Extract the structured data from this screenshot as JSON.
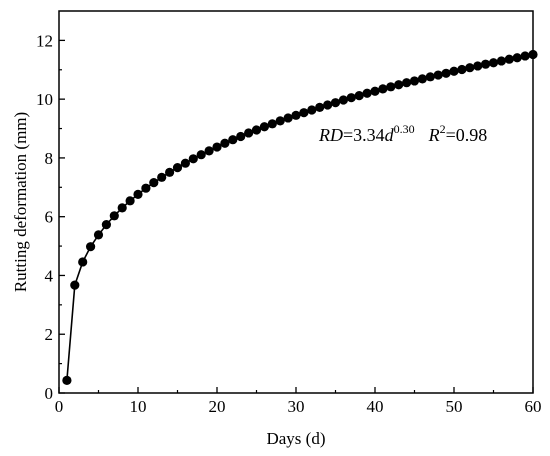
{
  "chart_data": {
    "type": "line",
    "xlabel": "Days (d)",
    "ylabel": "Rutting deformation (mm)",
    "xlim": [
      0,
      60
    ],
    "ylim": [
      0,
      13
    ],
    "xticks": [
      "0",
      "10",
      "20",
      "30",
      "40",
      "50",
      "60"
    ],
    "yticks": [
      "0",
      "2",
      "4",
      "6",
      "8",
      "10",
      "12"
    ],
    "grid": false,
    "legend": "none",
    "marker": "filled-circle",
    "line_color": "#000000",
    "series": [
      {
        "x": [
          1,
          2,
          3,
          4,
          5,
          6,
          7,
          8,
          9,
          10,
          11,
          12,
          13,
          14,
          15,
          16,
          17,
          18,
          19,
          20,
          21,
          22,
          23,
          24,
          25,
          26,
          27,
          28,
          29,
          30,
          31,
          32,
          33,
          34,
          35,
          36,
          37,
          38,
          39,
          40,
          41,
          42,
          43,
          44,
          45,
          46,
          47,
          48,
          49,
          50,
          51,
          52,
          53,
          54,
          55,
          56,
          57,
          58,
          59,
          60
        ],
        "y": [
          0.43,
          3.67,
          4.46,
          4.98,
          5.38,
          5.73,
          6.03,
          6.3,
          6.54,
          6.76,
          6.97,
          7.16,
          7.34,
          7.51,
          7.67,
          7.82,
          7.97,
          8.11,
          8.24,
          8.37,
          8.5,
          8.62,
          8.73,
          8.85,
          8.95,
          9.06,
          9.16,
          9.26,
          9.36,
          9.45,
          9.54,
          9.63,
          9.72,
          9.8,
          9.88,
          9.97,
          10.05,
          10.12,
          10.2,
          10.27,
          10.35,
          10.42,
          10.49,
          10.56,
          10.62,
          10.69,
          10.76,
          10.82,
          10.88,
          10.95,
          11.01,
          11.07,
          11.13,
          11.19,
          11.24,
          11.3,
          11.36,
          11.41,
          11.47,
          11.52
        ]
      }
    ],
    "annotation": {
      "rd": "RD",
      "eq_coef": "=3.34",
      "d": "d",
      "exponent": "0.30",
      "r": "R",
      "r_exp": "2",
      "r_value": "=0.98"
    }
  }
}
